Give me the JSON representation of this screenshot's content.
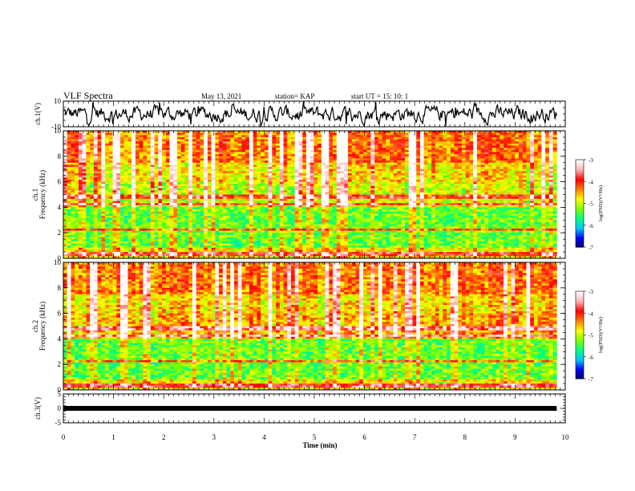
{
  "header": {
    "title": "VLF Spectra",
    "date": "May 13, 2021",
    "station": "station= KAP",
    "start_time": "start  UT =   15: 10: 1"
  },
  "chart_data": [
    {
      "type": "line",
      "panel": "ch1-waveform",
      "ylabel": "ch.1(V)",
      "ylim": [
        -10,
        10
      ],
      "yticks": [
        "10",
        "-10"
      ],
      "xlim": [
        0,
        10
      ],
      "data_end_min": 9.83,
      "series_color": "#000000"
    },
    {
      "type": "heatmap",
      "panel": "ch1-spectrogram",
      "ylabel": "Frequency (kHz)",
      "channel_label": "ch.1",
      "ylim": [
        0,
        10
      ],
      "yticks": [
        "0",
        "2",
        "4",
        "6",
        "8",
        "10"
      ],
      "xlim": [
        0,
        10
      ],
      "data_end_min": 9.83,
      "colorbar": {
        "label": "log(PSD)(V²/Hz)",
        "range": [
          -7,
          -3
        ],
        "ticks": [
          "-3",
          "-4",
          "-5",
          "-6",
          "-7"
        ],
        "colors": [
          "#000060",
          "#0000ff",
          "#00c8ff",
          "#00ff80",
          "#7fff00",
          "#ffff00",
          "#ff8000",
          "#ff0000",
          "#ffb0b0",
          "#ffffff"
        ]
      }
    },
    {
      "type": "heatmap",
      "panel": "ch2-spectrogram",
      "ylabel": "Frequency (kHz)",
      "channel_label": "ch.2",
      "ylim": [
        0,
        10
      ],
      "yticks": [
        "0",
        "2",
        "4",
        "6",
        "8",
        "10"
      ],
      "xlim": [
        0,
        10
      ],
      "data_end_min": 9.83,
      "colorbar": {
        "label": "log(PSD)(V²/Hz)",
        "range": [
          -7,
          -3
        ],
        "ticks": [
          "-3",
          "-4",
          "-5",
          "-6",
          "-7"
        ],
        "colors": [
          "#000060",
          "#0000ff",
          "#00c8ff",
          "#00ff80",
          "#7fff00",
          "#ffff00",
          "#ff8000",
          "#ff0000",
          "#ffb0b0",
          "#ffffff"
        ]
      }
    },
    {
      "type": "line",
      "panel": "ch3-waveform",
      "ylabel": "ch.3(V)",
      "ylim": [
        -5,
        5
      ],
      "yticks": [
        "5",
        "0",
        "-5"
      ],
      "xlim": [
        0,
        10
      ],
      "data_end_min": 9.83,
      "series_color": "#000000"
    }
  ],
  "xaxis": {
    "label": "Time (min)",
    "ticks": [
      "0",
      "1",
      "2",
      "3",
      "4",
      "5",
      "6",
      "7",
      "8",
      "9",
      "10"
    ]
  }
}
